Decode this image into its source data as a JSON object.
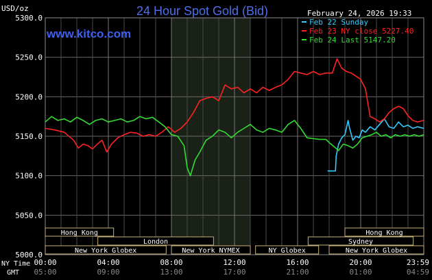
{
  "header": {
    "unit": "USD/oz",
    "title": "24 Hour Spot Gold (Bid)",
    "timestamp": "February 24, 2026 19:33",
    "watermark": "www.kitco.com"
  },
  "sessions": [
    {
      "label": "Hong Kong",
      "start": 0.0,
      "end": 4.333
    },
    {
      "label": "London",
      "start": 3.333,
      "end": 10.667
    },
    {
      "label": "New York Globex",
      "start": 0.0,
      "end": 7.667
    },
    {
      "label": "New York NYMEX",
      "start": 8.0,
      "end": 13.0
    },
    {
      "label": "NY Globex",
      "start": 13.333,
      "end": 17.333
    },
    {
      "label": "Hong Kong",
      "start": 19.0,
      "end": 24.0
    },
    {
      "label": "Sydney",
      "start": 16.667,
      "end": 23.333
    },
    {
      "label": "New York Globex",
      "start": 18.0,
      "end": 24.0
    }
  ],
  "time_labels": {
    "ny_label": "NY Time",
    "gmt_label": "GMT",
    "ny": [
      "00:00",
      "04:00",
      "08:00",
      "12:00",
      "16:00",
      "20:00",
      "23:59"
    ],
    "gmt": [
      "05:00",
      "09:00",
      "13:00",
      "17:00",
      "21:00",
      "01:00",
      "04:59"
    ]
  },
  "chart_data": {
    "type": "line",
    "title": "24 Hour Spot Gold (Bid)",
    "ylabel": "USD/oz",
    "ylim": [
      5000,
      5300
    ],
    "yticks": [
      "5300.0",
      "5250.0",
      "5200.0",
      "5150.0",
      "5100.0",
      "5050.0",
      "5000.0"
    ],
    "xlim": [
      0,
      24
    ],
    "grid": true,
    "legend_position": "top-right",
    "highlight_band": [
      8.0,
      13.0
    ],
    "series": [
      {
        "name": "Feb 22 Sunday",
        "color": "#33ccff",
        "x": [
          17.9,
          18.4,
          18.45,
          18.6,
          18.8,
          19.0,
          19.2,
          19.3,
          19.5,
          19.7,
          19.9,
          20.1,
          20.3,
          20.6,
          20.9,
          21.2,
          21.5,
          21.8,
          22.1,
          22.4,
          22.7,
          23.0,
          23.3,
          23.6,
          24.0
        ],
        "y": [
          5106,
          5106,
          5125,
          5140,
          5148,
          5152,
          5170,
          5160,
          5145,
          5150,
          5148,
          5158,
          5155,
          5162,
          5158,
          5165,
          5172,
          5162,
          5160,
          5168,
          5162,
          5164,
          5160,
          5162,
          5160
        ]
      },
      {
        "name": "Feb 23 NY close 5227.40",
        "color": "#ff2222",
        "x": [
          0.0,
          0.6,
          1.2,
          1.8,
          2.1,
          2.4,
          2.7,
          3.0,
          3.3,
          3.6,
          3.9,
          4.2,
          4.6,
          5.0,
          5.4,
          5.8,
          6.2,
          6.6,
          7.0,
          7.4,
          7.8,
          8.2,
          8.6,
          9.0,
          9.4,
          9.8,
          10.2,
          10.6,
          11.0,
          11.4,
          11.8,
          12.2,
          12.6,
          13.0,
          13.4,
          13.8,
          14.2,
          14.6,
          15.0,
          15.4,
          15.8,
          16.2,
          16.6,
          17.0,
          17.4,
          17.8,
          18.2,
          18.5,
          18.8,
          19.1,
          19.4,
          19.7,
          20.0,
          20.3,
          20.6,
          20.9,
          21.2,
          21.5,
          21.8,
          22.1,
          22.4,
          22.7,
          23.0,
          23.3,
          23.6,
          24.0
        ],
        "y": [
          5160,
          5158,
          5155,
          5145,
          5135,
          5140,
          5138,
          5134,
          5140,
          5145,
          5130,
          5140,
          5148,
          5152,
          5155,
          5154,
          5150,
          5152,
          5150,
          5155,
          5162,
          5155,
          5160,
          5168,
          5180,
          5195,
          5198,
          5200,
          5195,
          5215,
          5210,
          5212,
          5205,
          5210,
          5205,
          5212,
          5208,
          5212,
          5215,
          5222,
          5232,
          5230,
          5228,
          5232,
          5228,
          5230,
          5230,
          5248,
          5236,
          5232,
          5230,
          5226,
          5222,
          5210,
          5175,
          5172,
          5168,
          5172,
          5180,
          5185,
          5188,
          5185,
          5176,
          5170,
          5168,
          5170
        ]
      },
      {
        "name": "Feb 24 Last 5147.20",
        "color": "#33dd33",
        "x": [
          0.0,
          0.4,
          0.8,
          1.2,
          1.6,
          2.0,
          2.4,
          2.8,
          3.2,
          3.6,
          4.0,
          4.4,
          4.8,
          5.2,
          5.6,
          6.0,
          6.4,
          6.8,
          7.2,
          7.6,
          8.0,
          8.4,
          8.8,
          9.0,
          9.2,
          9.5,
          9.8,
          10.2,
          10.6,
          11.0,
          11.4,
          11.8,
          12.2,
          12.6,
          13.0,
          13.4,
          13.8,
          14.2,
          14.6,
          15.0,
          15.4,
          15.8,
          16.2,
          16.6,
          17.0,
          17.4,
          17.8,
          18.0,
          18.3,
          18.6,
          18.9,
          19.2,
          19.5,
          19.8,
          20.1,
          20.4,
          20.7,
          21.0,
          21.3,
          21.6,
          21.9,
          22.2,
          22.5,
          22.8,
          23.1,
          23.4,
          23.7,
          24.0
        ],
        "y": [
          5168,
          5175,
          5170,
          5172,
          5168,
          5174,
          5170,
          5165,
          5170,
          5172,
          5168,
          5170,
          5172,
          5168,
          5170,
          5175,
          5172,
          5174,
          5168,
          5162,
          5152,
          5150,
          5138,
          5110,
          5100,
          5120,
          5130,
          5145,
          5150,
          5158,
          5155,
          5148,
          5155,
          5160,
          5165,
          5158,
          5155,
          5160,
          5158,
          5155,
          5165,
          5170,
          5160,
          5148,
          5147,
          5146,
          5146,
          5142,
          5137,
          5132,
          5140,
          5138,
          5135,
          5140,
          5148,
          5150,
          5152,
          5155,
          5150,
          5152,
          5148,
          5152,
          5150,
          5152,
          5150,
          5152,
          5150,
          5152
        ]
      }
    ]
  }
}
